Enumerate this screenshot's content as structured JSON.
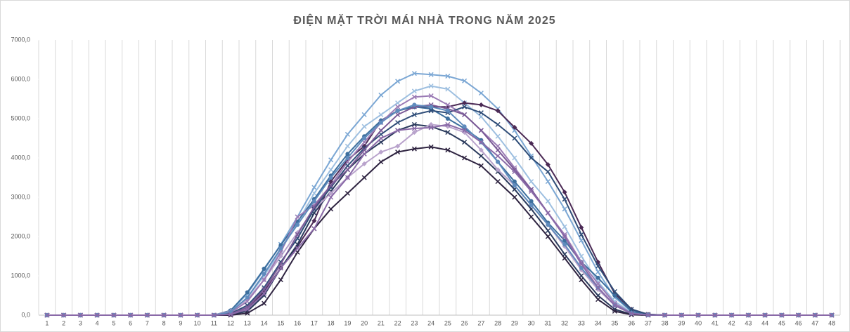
{
  "chart_data": {
    "type": "line",
    "title": "ĐIỆN MẶT TRỜI MÁI NHÀ TRONG NĂM 2025",
    "categories": [
      1,
      2,
      3,
      4,
      5,
      6,
      7,
      8,
      9,
      10,
      11,
      12,
      13,
      14,
      15,
      16,
      17,
      18,
      19,
      20,
      21,
      22,
      23,
      24,
      25,
      26,
      27,
      28,
      29,
      30,
      31,
      32,
      33,
      34,
      35,
      36,
      37,
      38,
      39,
      40,
      41,
      42,
      43,
      44,
      45,
      46,
      47,
      48
    ],
    "ylim": [
      0,
      7000
    ],
    "yticks": [
      {
        "value": 0,
        "label": "0,0"
      },
      {
        "value": 1000,
        "label": "1000,0"
      },
      {
        "value": 2000,
        "label": "2000,0"
      },
      {
        "value": 3000,
        "label": "3000,0"
      },
      {
        "value": 4000,
        "label": "4000,0"
      },
      {
        "value": 5000,
        "label": "5000,0"
      },
      {
        "value": 6000,
        "label": "6000,0"
      },
      {
        "value": 7000,
        "label": "7000,0"
      }
    ],
    "grid": "vertical",
    "series": [
      {
        "color": "#7ba7d4",
        "marker": "x",
        "values": [
          0,
          0,
          0,
          0,
          0,
          0,
          0,
          0,
          0,
          0,
          0,
          100,
          550,
          1150,
          1800,
          2500,
          3250,
          3950,
          4600,
          5100,
          5600,
          5950,
          6150,
          6120,
          6080,
          5960,
          5650,
          5250,
          4700,
          4050,
          3400,
          2700,
          1900,
          1100,
          450,
          100,
          10,
          0,
          0,
          0,
          0,
          0,
          0,
          0,
          0,
          0,
          0,
          0
        ]
      },
      {
        "color": "#9dbfe0",
        "marker": "x",
        "values": [
          0,
          0,
          0,
          0,
          0,
          0,
          0,
          0,
          0,
          0,
          0,
          80,
          450,
          1000,
          1650,
          2350,
          3100,
          3700,
          4300,
          4800,
          5100,
          5400,
          5700,
          5830,
          5750,
          5400,
          5050,
          4550,
          4000,
          3400,
          2900,
          2250,
          1500,
          850,
          350,
          70,
          5,
          0,
          0,
          0,
          0,
          0,
          0,
          0,
          0,
          0,
          0,
          0
        ]
      },
      {
        "color": "#4b2a55",
        "marker": "diamond",
        "values": [
          0,
          0,
          0,
          0,
          0,
          0,
          0,
          0,
          0,
          0,
          0,
          20,
          150,
          600,
          1200,
          1750,
          2400,
          3400,
          3950,
          4300,
          4950,
          5200,
          5300,
          5300,
          5300,
          5400,
          5350,
          5200,
          4780,
          4370,
          3830,
          3130,
          2230,
          1350,
          550,
          150,
          20,
          0,
          0,
          0,
          0,
          0,
          0,
          0,
          0,
          0,
          0,
          0
        ]
      },
      {
        "color": "#2a3a5c",
        "marker": "x",
        "values": [
          0,
          0,
          0,
          0,
          0,
          0,
          0,
          0,
          0,
          0,
          0,
          10,
          100,
          500,
          1200,
          1800,
          2600,
          3150,
          3700,
          4100,
          4400,
          4700,
          4850,
          4800,
          4650,
          4400,
          4050,
          3650,
          3200,
          2700,
          2150,
          1550,
          1000,
          500,
          150,
          20,
          0,
          0,
          0,
          0,
          0,
          0,
          0,
          0,
          0,
          0,
          0,
          0
        ]
      },
      {
        "color": "#2e2340",
        "marker": "x",
        "values": [
          0,
          0,
          0,
          0,
          0,
          0,
          0,
          0,
          0,
          0,
          0,
          0,
          50,
          300,
          900,
          1600,
          2200,
          2700,
          3100,
          3500,
          3900,
          4150,
          4230,
          4280,
          4200,
          4000,
          3800,
          3400,
          3000,
          2500,
          2000,
          1450,
          900,
          400,
          100,
          10,
          0,
          0,
          0,
          0,
          0,
          0,
          0,
          0,
          0,
          0,
          0,
          0
        ]
      },
      {
        "color": "#3d6f9e",
        "marker": "circle",
        "values": [
          0,
          0,
          0,
          0,
          0,
          0,
          0,
          0,
          0,
          0,
          0,
          120,
          580,
          1180,
          1780,
          2380,
          2950,
          3550,
          4100,
          4550,
          4950,
          5200,
          5300,
          5250,
          5000,
          4750,
          4450,
          3900,
          3400,
          2900,
          2350,
          1900,
          1350,
          950,
          500,
          100,
          10,
          0,
          0,
          0,
          0,
          0,
          0,
          0,
          0,
          0,
          0,
          0
        ]
      },
      {
        "color": "#b9a3cc",
        "marker": "diamond",
        "values": [
          0,
          0,
          0,
          0,
          0,
          0,
          0,
          0,
          0,
          0,
          0,
          100,
          400,
          900,
          1500,
          2100,
          2700,
          3100,
          3500,
          3850,
          4150,
          4300,
          4650,
          4850,
          4800,
          4650,
          4200,
          3700,
          3300,
          2800,
          2300,
          1750,
          1150,
          650,
          250,
          50,
          5,
          0,
          0,
          0,
          0,
          0,
          0,
          0,
          0,
          0,
          0,
          0
        ]
      },
      {
        "color": "#9b7bb5",
        "marker": "x",
        "values": [
          0,
          0,
          0,
          0,
          0,
          0,
          0,
          0,
          0,
          0,
          0,
          60,
          350,
          900,
          1600,
          2500,
          2800,
          3300,
          3900,
          4400,
          4900,
          5300,
          5550,
          5580,
          5350,
          5100,
          4700,
          4300,
          3750,
          3200,
          2600,
          2050,
          1350,
          800,
          300,
          50,
          5,
          0,
          0,
          0,
          0,
          0,
          0,
          0,
          0,
          0,
          0,
          0
        ]
      },
      {
        "color": "#2f4d78",
        "marker": "x",
        "values": [
          0,
          0,
          0,
          0,
          0,
          0,
          0,
          0,
          0,
          0,
          0,
          40,
          250,
          700,
          1350,
          1950,
          2700,
          3250,
          3800,
          4250,
          4600,
          4900,
          5100,
          5200,
          5150,
          5300,
          5150,
          4850,
          4500,
          4000,
          3650,
          2950,
          2050,
          1250,
          600,
          150,
          20,
          0,
          0,
          0,
          0,
          0,
          0,
          0,
          0,
          0,
          0,
          0
        ]
      },
      {
        "color": "#7a5a96",
        "marker": "x",
        "values": [
          0,
          0,
          0,
          0,
          0,
          0,
          0,
          0,
          0,
          0,
          0,
          30,
          200,
          650,
          1300,
          2050,
          2750,
          3300,
          3700,
          4200,
          4700,
          5100,
          5300,
          5350,
          5250,
          5100,
          4700,
          4200,
          3700,
          3200,
          2600,
          2000,
          1300,
          700,
          250,
          40,
          5,
          0,
          0,
          0,
          0,
          0,
          0,
          0,
          0,
          0,
          0,
          0
        ]
      },
      {
        "color": "#5f8bbd",
        "marker": "circle",
        "values": [
          0,
          0,
          0,
          0,
          0,
          0,
          0,
          0,
          0,
          0,
          0,
          80,
          450,
          1050,
          1700,
          2300,
          2900,
          3500,
          4000,
          4500,
          4900,
          5200,
          5350,
          5300,
          5200,
          4800,
          4400,
          3900,
          3300,
          2800,
          2300,
          1800,
          1200,
          700,
          250,
          50,
          5,
          0,
          0,
          0,
          0,
          0,
          0,
          0,
          0,
          0,
          0,
          0
        ]
      },
      {
        "color": "#8a6aa8",
        "marker": "x",
        "values": [
          0,
          0,
          0,
          0,
          0,
          0,
          0,
          0,
          0,
          0,
          0,
          20,
          150,
          550,
          1200,
          1700,
          2200,
          3000,
          3500,
          4100,
          4500,
          4700,
          4750,
          4770,
          4850,
          4700,
          4400,
          4050,
          3650,
          3150,
          2600,
          2000,
          1300,
          700,
          250,
          40,
          5,
          0,
          0,
          0,
          0,
          0,
          0,
          0,
          0,
          0,
          0,
          0
        ]
      }
    ]
  }
}
